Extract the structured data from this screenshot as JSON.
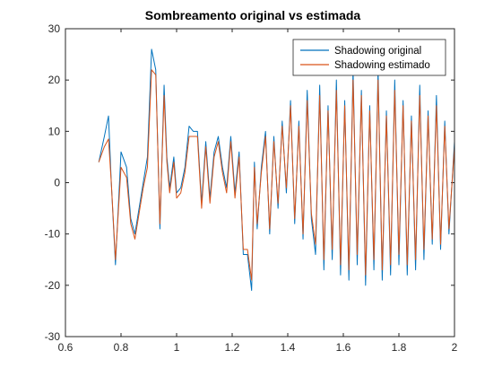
{
  "chart_data": {
    "type": "line",
    "title": "Sombreamento original vs estimada",
    "xlabel": "",
    "ylabel": "",
    "xlim": [
      0.6,
      2.0
    ],
    "ylim": [
      -30,
      30
    ],
    "xticks": [
      "0.6",
      "0.8",
      "1",
      "1.2",
      "1.4",
      "1.6",
      "1.8",
      "2"
    ],
    "yticks": [
      "30",
      "20",
      "10",
      "0",
      "-10",
      "-20",
      "-30"
    ],
    "legend_position": "top-right",
    "grid": false,
    "series": [
      {
        "name": "Shadowing original",
        "color": "#0072BD",
        "x": [
          0.72,
          0.74,
          0.755,
          0.765,
          0.78,
          0.8,
          0.82,
          0.835,
          0.85,
          0.865,
          0.88,
          0.895,
          0.91,
          0.925,
          0.94,
          0.955,
          0.965,
          0.975,
          0.99,
          1.0,
          1.015,
          1.03,
          1.045,
          1.06,
          1.075,
          1.09,
          1.105,
          1.12,
          1.135,
          1.15,
          1.165,
          1.18,
          1.195,
          1.21,
          1.225,
          1.24,
          1.255,
          1.27,
          1.28,
          1.29,
          1.305,
          1.32,
          1.335,
          1.35,
          1.365,
          1.38,
          1.395,
          1.41,
          1.425,
          1.44,
          1.455,
          1.47,
          1.485,
          1.5,
          1.515,
          1.53,
          1.545,
          1.56,
          1.575,
          1.59,
          1.605,
          1.62,
          1.635,
          1.65,
          1.665,
          1.68,
          1.695,
          1.71,
          1.725,
          1.74,
          1.755,
          1.77,
          1.785,
          1.8,
          1.815,
          1.83,
          1.845,
          1.86,
          1.875,
          1.89,
          1.905,
          1.92,
          1.935,
          1.95,
          1.965,
          1.98,
          2.0
        ],
        "y": [
          4,
          9,
          13,
          0,
          -16,
          6,
          3,
          -7,
          -10,
          -5,
          0,
          5,
          26,
          22,
          -9,
          19,
          5,
          -1,
          5,
          -2,
          -1,
          3,
          11,
          10,
          10,
          -4,
          8,
          -3,
          6,
          9,
          3,
          -1,
          9,
          -2,
          6,
          -14,
          -14,
          -21,
          4,
          -9,
          3,
          10,
          -10,
          9,
          -5,
          12,
          -2,
          16,
          -8,
          12,
          -11,
          18,
          -7,
          -14,
          19,
          -17,
          15,
          -15,
          20,
          -18,
          16,
          -19,
          22,
          -16,
          18,
          -20,
          15,
          -17,
          22,
          -19,
          14,
          -18,
          20,
          -16,
          16,
          -18,
          13,
          -17,
          19,
          -15,
          14,
          -12,
          17,
          -13,
          12,
          -10,
          8
        ]
      },
      {
        "name": "Shadowing estimado",
        "color": "#D95319",
        "x": [
          0.72,
          0.74,
          0.755,
          0.765,
          0.78,
          0.8,
          0.82,
          0.835,
          0.85,
          0.865,
          0.88,
          0.895,
          0.91,
          0.925,
          0.94,
          0.955,
          0.965,
          0.975,
          0.99,
          1.0,
          1.015,
          1.03,
          1.045,
          1.06,
          1.075,
          1.09,
          1.105,
          1.12,
          1.135,
          1.15,
          1.165,
          1.18,
          1.195,
          1.21,
          1.225,
          1.24,
          1.255,
          1.27,
          1.28,
          1.29,
          1.305,
          1.32,
          1.335,
          1.35,
          1.365,
          1.38,
          1.395,
          1.41,
          1.425,
          1.44,
          1.455,
          1.47,
          1.485,
          1.5,
          1.515,
          1.53,
          1.545,
          1.56,
          1.575,
          1.59,
          1.605,
          1.62,
          1.635,
          1.65,
          1.665,
          1.68,
          1.695,
          1.71,
          1.725,
          1.74,
          1.755,
          1.77,
          1.785,
          1.8,
          1.815,
          1.83,
          1.845,
          1.86,
          1.875,
          1.89,
          1.905,
          1.92,
          1.935,
          1.95,
          1.965,
          1.98,
          2.0
        ],
        "y": [
          4,
          7,
          8.5,
          0,
          -15,
          3,
          1,
          -8,
          -11,
          -6,
          -1,
          3,
          22,
          21,
          -8,
          17,
          4,
          -2,
          4,
          -3,
          -2,
          2,
          9,
          9,
          9,
          -5,
          7,
          -4,
          5,
          8,
          2,
          -2,
          8,
          -3,
          5,
          -13,
          -13,
          -19,
          3,
          -8,
          2,
          9,
          -9,
          8,
          -4,
          11,
          -1,
          15,
          -7,
          11,
          -10,
          16,
          -6,
          -12,
          17,
          -15,
          14,
          -13,
          18,
          -16,
          15,
          -17,
          20,
          -14,
          17,
          -18,
          14,
          -15,
          20,
          -17,
          13,
          -16,
          18,
          -14,
          15,
          -16,
          12,
          -15,
          17,
          -13,
          13,
          -11,
          15,
          -12,
          11,
          -9,
          7
        ]
      }
    ]
  }
}
